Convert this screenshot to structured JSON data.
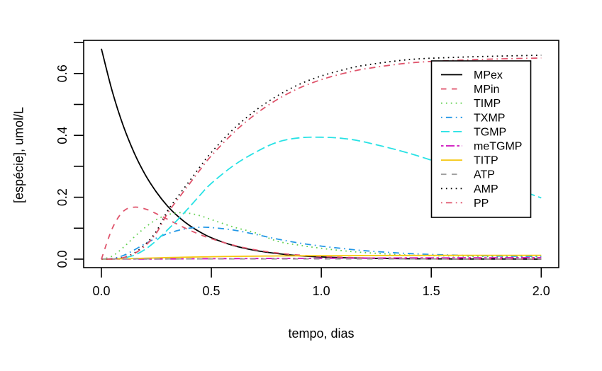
{
  "figure": {
    "background": "#ffffff",
    "frame_color": "#000000"
  },
  "chart_data": {
    "type": "line",
    "title": "",
    "xlabel": "tempo, dias",
    "ylabel": "[espécie], umol/L",
    "xlim": [
      0,
      2
    ],
    "ylim": [
      0,
      0.68
    ],
    "grid": false,
    "legend_position": "top-right-inside",
    "xticks": {
      "values": [
        0,
        0.5,
        1.0,
        1.5,
        2.0
      ],
      "labels": [
        "0.0",
        "0.5",
        "1.0",
        "1.5",
        "2.0"
      ]
    },
    "yticks": {
      "values": [
        0,
        0.1,
        0.2,
        0.3,
        0.4,
        0.5,
        0.6,
        0.7
      ],
      "labels": [
        "0.0",
        "",
        "0.2",
        "",
        "0.4",
        "",
        "0.6",
        ""
      ]
    },
    "x": [
      0,
      0.05,
      0.1,
      0.15,
      0.2,
      0.25,
      0.3,
      0.35,
      0.4,
      0.45,
      0.5,
      0.6,
      0.7,
      0.8,
      0.9,
      1.0,
      1.1,
      1.2,
      1.4,
      1.6,
      1.8,
      2.0
    ],
    "series": [
      {
        "name": "MPex",
        "color": "#000000",
        "linetype": "solid",
        "values": [
          0.68,
          0.541,
          0.43,
          0.342,
          0.272,
          0.217,
          0.172,
          0.137,
          0.109,
          0.087,
          0.069,
          0.044,
          0.028,
          0.018,
          0.011,
          0.007,
          0.0045,
          0.003,
          0.0012,
          0.0005,
          0.0002,
          0.0001
        ]
      },
      {
        "name": "MPin",
        "color": "#DF536B",
        "linetype": "dashed",
        "values": [
          0,
          0.1,
          0.155,
          0.168,
          0.162,
          0.147,
          0.129,
          0.111,
          0.094,
          0.079,
          0.066,
          0.045,
          0.03,
          0.02,
          0.013,
          0.009,
          0.006,
          0.004,
          0.002,
          0.001,
          0.0005,
          0.0003
        ]
      },
      {
        "name": "TIMP",
        "color": "#61D04F",
        "linetype": "dotted",
        "values": [
          0,
          0.01,
          0.038,
          0.072,
          0.103,
          0.128,
          0.143,
          0.15,
          0.148,
          0.14,
          0.128,
          0.104,
          0.085,
          0.058,
          0.045,
          0.035,
          0.027,
          0.021,
          0.013,
          0.01,
          0.008,
          0.0075
        ]
      },
      {
        "name": "TXMP",
        "color": "#2297E6",
        "linetype": "dotdash",
        "values": [
          0,
          0.002,
          0.012,
          0.03,
          0.05,
          0.068,
          0.082,
          0.093,
          0.1,
          0.103,
          0.102,
          0.094,
          0.08,
          0.065,
          0.052,
          0.042,
          0.034,
          0.027,
          0.018,
          0.013,
          0.01,
          0.009
        ]
      },
      {
        "name": "TGMP",
        "color": "#28E2E5",
        "linetype": "longdash",
        "values": [
          0,
          0.0005,
          0.004,
          0.013,
          0.032,
          0.06,
          0.094,
          0.13,
          0.168,
          0.208,
          0.245,
          0.302,
          0.345,
          0.378,
          0.392,
          0.394,
          0.39,
          0.378,
          0.342,
          0.296,
          0.248,
          0.198
        ]
      },
      {
        "name": "meTGMP",
        "color": "#CD0BBC",
        "linetype": "twodash",
        "values": [
          0,
          0.0001,
          0.0002,
          0.0003,
          0.0004,
          0.0005,
          0.0007,
          0.0008,
          0.001,
          0.0011,
          0.0013,
          0.0016,
          0.0019,
          0.0022,
          0.0025,
          0.0028,
          0.0031,
          0.0033,
          0.0038,
          0.0041,
          0.0044,
          0.0046
        ]
      },
      {
        "name": "TITP",
        "color": "#F5C710",
        "linetype": "solid",
        "values": [
          0,
          0.0005,
          0.0012,
          0.002,
          0.003,
          0.004,
          0.005,
          0.0058,
          0.0065,
          0.0072,
          0.0078,
          0.0089,
          0.0097,
          0.0103,
          0.0108,
          0.0111,
          0.0114,
          0.0116,
          0.0119,
          0.0121,
          0.0123,
          0.0124
        ]
      },
      {
        "name": "ATP",
        "color": "#9E9E9E",
        "linetype": "dashed",
        "values": [
          0.0008,
          0.0008,
          0.0008,
          0.0008,
          0.0008,
          0.0008,
          0.0008,
          0.0008,
          0.0008,
          0.0008,
          0.0008,
          0.0008,
          0.0008,
          0.0008,
          0.0008,
          0.0008,
          0.0008,
          0.0008,
          0.0008,
          0.0008,
          0.0008,
          0.0008
        ]
      },
      {
        "name": "AMP",
        "color": "#000000",
        "linetype": "dotted",
        "values": [
          0,
          0.001,
          0.006,
          0.02,
          0.048,
          0.09,
          0.155,
          0.205,
          0.252,
          0.3,
          0.345,
          0.42,
          0.48,
          0.528,
          0.565,
          0.592,
          0.612,
          0.627,
          0.645,
          0.652,
          0.656,
          0.659
        ]
      },
      {
        "name": "PP",
        "color": "#DF536B",
        "linetype": "dotdash",
        "values": [
          0,
          0.001,
          0.005,
          0.018,
          0.044,
          0.084,
          0.147,
          0.196,
          0.243,
          0.29,
          0.334,
          0.408,
          0.468,
          0.516,
          0.553,
          0.58,
          0.6,
          0.615,
          0.634,
          0.642,
          0.647,
          0.65
        ]
      }
    ]
  }
}
